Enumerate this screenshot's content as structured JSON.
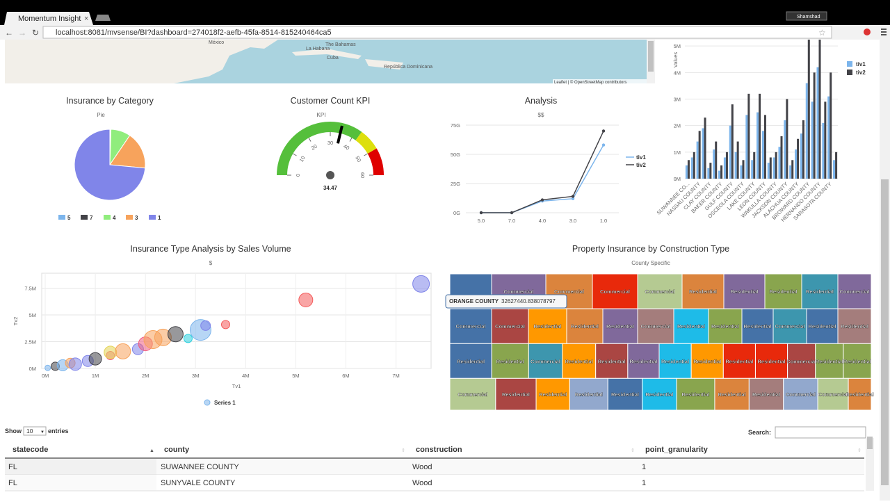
{
  "browser": {
    "tab_title": "Momentum Insight",
    "user": "Shamshad",
    "url": "localhost:8081/mvsense/BI?dashboard=274018f2-aefb-45fa-8514-815240464ca5"
  },
  "map": {
    "labels": [
      "México",
      "La Habana",
      "The Bahamas",
      "Cuba",
      "República Dominicana"
    ],
    "attribution": "Leaflet | © OpenStreetMap contributors"
  },
  "bar_chart": {
    "type": "bar",
    "y_label": "Values",
    "categories": [
      "SUWANNEE CO...",
      null,
      "NASSAU COUNTY",
      null,
      "CLAY COUNTY",
      null,
      "BAKER COUNTY",
      null,
      "GULF COUNTY",
      null,
      "OSCEOLA COUNTY",
      null,
      "LAKE COUNTY",
      null,
      "LEON COUNTY",
      null,
      "WAKULLA COUNTY",
      null,
      "JACKSON COUNTY",
      null,
      "ALACHUA COUNTY",
      null,
      "BROWARD COUNTY",
      null,
      "HERNANDO COUNTY",
      null,
      "SARASOTA COUNTY",
      null
    ],
    "series": [
      {
        "name": "tiv1",
        "color": "#7cb5ec",
        "values": [
          0.5,
          0.8,
          1.4,
          1.9,
          0.4,
          1.1,
          0.3,
          0.8,
          2.0,
          1.0,
          0.5,
          2.4,
          0.7,
          2.5,
          1.8,
          0.6,
          0.8,
          1.2,
          2.2,
          0.5,
          1.1,
          1.7,
          3.6,
          2.9,
          4.2,
          2.1,
          3.1,
          0.7
        ]
      },
      {
        "name": "tiv2",
        "color": "#434348",
        "values": [
          0.7,
          1.0,
          1.8,
          2.3,
          0.6,
          1.4,
          0.5,
          1.0,
          2.8,
          1.4,
          0.7,
          3.2,
          1.0,
          3.2,
          2.4,
          0.8,
          1.0,
          1.6,
          3.0,
          0.7,
          1.5,
          2.2,
          5.3,
          4.0,
          5.3,
          2.9,
          4.0,
          1.0
        ]
      }
    ],
    "ylim": [
      0,
      5.24
    ],
    "yticks": [
      {
        "value": 0,
        "label": "0M"
      },
      {
        "value": 1,
        "label": "1M"
      },
      {
        "value": 2,
        "label": "2M"
      },
      {
        "value": 3,
        "label": "3M"
      },
      {
        "value": 4,
        "label": "4M"
      },
      {
        "value": 5,
        "label": "5M"
      }
    ],
    "grid": true
  },
  "pie_chart": {
    "type": "pie",
    "title": "Insurance by Category",
    "subtitle": "Pie",
    "categories": [
      "5",
      "7",
      "4",
      "3",
      "1"
    ],
    "values": [
      0.3,
      0.2,
      9,
      17,
      73.5
    ],
    "colors": [
      "#7cb5ec",
      "#434348",
      "#90ed7d",
      "#f7a35c",
      "#8085e9"
    ]
  },
  "gauge": {
    "type": "gauge",
    "title": "Customer Count KPI",
    "subtitle": "KPI",
    "value": 34.47,
    "range": [
      0,
      60
    ],
    "ticks": [
      0,
      10,
      20,
      30,
      40,
      50,
      60
    ],
    "bands": [
      {
        "from": 0,
        "to": 42,
        "color": "#55bf3b"
      },
      {
        "from": 42,
        "to": 50,
        "color": "#dddf0d"
      },
      {
        "from": 50,
        "to": 60,
        "color": "#df0000"
      }
    ]
  },
  "line_chart": {
    "type": "line",
    "title": "Analysis",
    "subtitle": "$$",
    "categories": [
      "5.0",
      "7.0",
      "4.0",
      "3.0",
      "1.0"
    ],
    "series": [
      {
        "name": "tiv1",
        "color": "#7cb5ec",
        "values": [
          0,
          0,
          10,
          12,
          58
        ]
      },
      {
        "name": "tiv2",
        "color": "#434348",
        "values": [
          0,
          0,
          11,
          14,
          70
        ]
      }
    ],
    "ylim": [
      0,
      75
    ],
    "yticks": [
      {
        "value": 0,
        "label": "0G"
      },
      {
        "value": 25,
        "label": "25G"
      },
      {
        "value": 50,
        "label": "50G"
      },
      {
        "value": 75,
        "label": "75G"
      }
    ],
    "grid": true
  },
  "bubble_chart": {
    "type": "bubble",
    "title": "Insurance Type Analysis by Sales Volume",
    "subtitle": "$",
    "x_label": "Tv1",
    "y_label": "Tv2",
    "legend": "Series 1",
    "x": [
      0.05,
      0.2,
      0.35,
      0.5,
      0.6,
      0.85,
      1.0,
      1.3,
      1.3,
      1.55,
      1.85,
      2.0,
      2.15,
      2.35,
      2.6,
      2.85,
      3.1,
      3.2,
      3.6,
      5.2,
      7.5
    ],
    "y": [
      0.05,
      0.2,
      0.3,
      0.5,
      0.4,
      0.7,
      0.9,
      1.2,
      1.5,
      1.6,
      1.8,
      2.3,
      2.7,
      2.9,
      3.2,
      2.8,
      3.6,
      4.0,
      4.1,
      6.4,
      7.9
    ],
    "size": [
      4,
      6,
      8,
      7,
      9,
      8,
      9,
      6,
      9,
      11,
      8,
      10,
      13,
      12,
      11,
      6,
      15,
      7,
      6,
      10,
      12
    ],
    "colors": [
      "#7cb5ec",
      "#434348",
      "#7cb5ec",
      "#f7a35c",
      "#8085e9",
      "#8085e9",
      "#434348",
      "#f15c80",
      "#e4d354",
      "#f7a35c",
      "#8085e9",
      "#f15c80",
      "#f7a35c",
      "#f7a35c",
      "#434348",
      "#2bd0df",
      "#7cb5ec",
      "#8085e9",
      "#f45b5b",
      "#f45b5b",
      "#8085e9"
    ],
    "xlim": [
      -0.07,
      7.7
    ],
    "xticks": [
      {
        "value": 0,
        "label": "0M"
      },
      {
        "value": 1,
        "label": "1M"
      },
      {
        "value": 2,
        "label": "2M"
      },
      {
        "value": 3,
        "label": "3M"
      },
      {
        "value": 4,
        "label": "4M"
      },
      {
        "value": 5,
        "label": "5M"
      },
      {
        "value": 6,
        "label": "6M"
      },
      {
        "value": 7,
        "label": "7M"
      }
    ],
    "ylim": [
      0,
      8.9
    ],
    "yticks": [
      {
        "value": 0,
        "label": "0M"
      },
      {
        "value": 2.5,
        "label": "2.5M"
      },
      {
        "value": 5,
        "label": "5M"
      },
      {
        "value": 7.5,
        "label": "7.5M"
      }
    ],
    "grid": true
  },
  "treemap": {
    "type": "treemap",
    "title": "Property Insurance by Construction Type",
    "subtitle": "County Specific",
    "tooltip": {
      "name": "ORANGE COUNTY",
      "value": "32627440.838078797"
    },
    "rows": [
      [
        {
          "label": null,
          "color": "#4572a7",
          "value": 60
        },
        {
          "label": "Commercial",
          "color": "#80699b",
          "value": 78
        },
        {
          "label": "Commercial",
          "color": "#db843d",
          "value": 67
        },
        {
          "label": "Commercial",
          "color": "#e8290b",
          "value": 65
        },
        {
          "label": "Commercial",
          "color": "#b5ca92",
          "value": 64
        },
        {
          "label": "Residential",
          "color": "#db843d",
          "value": 60
        },
        {
          "label": "Residential",
          "color": "#80699b",
          "value": 59
        },
        {
          "label": "Residential",
          "color": "#89a54e",
          "value": 53
        },
        {
          "label": "Residential",
          "color": "#3d96ae",
          "value": 52
        },
        {
          "label": "Commercial",
          "color": "#80699b",
          "value": 48
        }
      ],
      [
        {
          "label": "Commercial",
          "color": "#4572a7",
          "value": 60
        },
        {
          "label": "Commercial",
          "color": "#aa4643",
          "value": 53
        },
        {
          "label": "Residential",
          "color": "#ff9800",
          "value": 55
        },
        {
          "label": "Residential",
          "color": "#db843d",
          "value": 52
        },
        {
          "label": "Residential",
          "color": "#80699b",
          "value": 50
        },
        {
          "label": "Commercial",
          "color": "#a47d7c",
          "value": 52
        },
        {
          "label": "Residential",
          "color": "#1ebbe8",
          "value": 50
        },
        {
          "label": "Residential",
          "color": "#89a54e",
          "value": 48
        },
        {
          "label": "Residential",
          "color": "#4572a7",
          "value": 45
        },
        {
          "label": "Commercial",
          "color": "#3d96ae",
          "value": 48
        },
        {
          "label": "Residential",
          "color": "#4572a7",
          "value": 45
        },
        {
          "label": "Residential",
          "color": "#a47d7c",
          "value": 48
        }
      ],
      [
        {
          "label": "Residential",
          "color": "#4572a7",
          "value": 60
        },
        {
          "label": "Residential",
          "color": "#89a54e",
          "value": 53
        },
        {
          "label": "Commercial",
          "color": "#3d96ae",
          "value": 48
        },
        {
          "label": "Residential",
          "color": "#ff9800",
          "value": 48
        },
        {
          "label": "Residential",
          "color": "#aa4643",
          "value": 46
        },
        {
          "label": "Residential",
          "color": "#80699b",
          "value": 45
        },
        {
          "label": "Residential",
          "color": "#1ebbe8",
          "value": 46
        },
        {
          "label": "Residential",
          "color": "#ff9800",
          "value": 46
        },
        {
          "label": "Residential",
          "color": "#e8290b",
          "value": 46
        },
        {
          "label": "Residential",
          "color": "#e8290b",
          "value": 46
        },
        {
          "label": "Commercial",
          "color": "#aa4643",
          "value": 40
        },
        {
          "label": "Residential",
          "color": "#89a54e",
          "value": 40
        },
        {
          "label": "Residential",
          "color": "#89a54e",
          "value": 40
        }
      ],
      [
        {
          "label": "Commercial",
          "color": "#b5ca92",
          "value": 60
        },
        {
          "label": "Residential",
          "color": "#aa4643",
          "value": 53
        },
        {
          "label": "Residential",
          "color": "#ff9800",
          "value": 44
        },
        {
          "label": "Residential",
          "color": "#92a8cd",
          "value": 50
        },
        {
          "label": "Residential",
          "color": "#4572a7",
          "value": 45
        },
        {
          "label": "Residential",
          "color": "#1ebbe8",
          "value": 45
        },
        {
          "label": "Residential",
          "color": "#89a54e",
          "value": 50
        },
        {
          "label": "Residential",
          "color": "#db843d",
          "value": 45
        },
        {
          "label": "Residential",
          "color": "#a47d7c",
          "value": 45
        },
        {
          "label": "Commercial",
          "color": "#92a8cd",
          "value": 45
        },
        {
          "label": "Commercial",
          "color": "#b5ca92",
          "value": 40
        },
        {
          "label": "Residential",
          "color": "#db843d",
          "value": 30
        }
      ]
    ]
  },
  "table": {
    "show": "Show",
    "page_size": 10,
    "entries": "entries",
    "search": "Search:",
    "columns": [
      "statecode",
      "county",
      "construction",
      "point_granularity"
    ],
    "rows": [
      [
        "FL",
        "SUWANNEE COUNTY",
        "Wood",
        1
      ],
      [
        "FL",
        "SUNYVALE COUNTY",
        "Wood",
        1
      ]
    ]
  }
}
